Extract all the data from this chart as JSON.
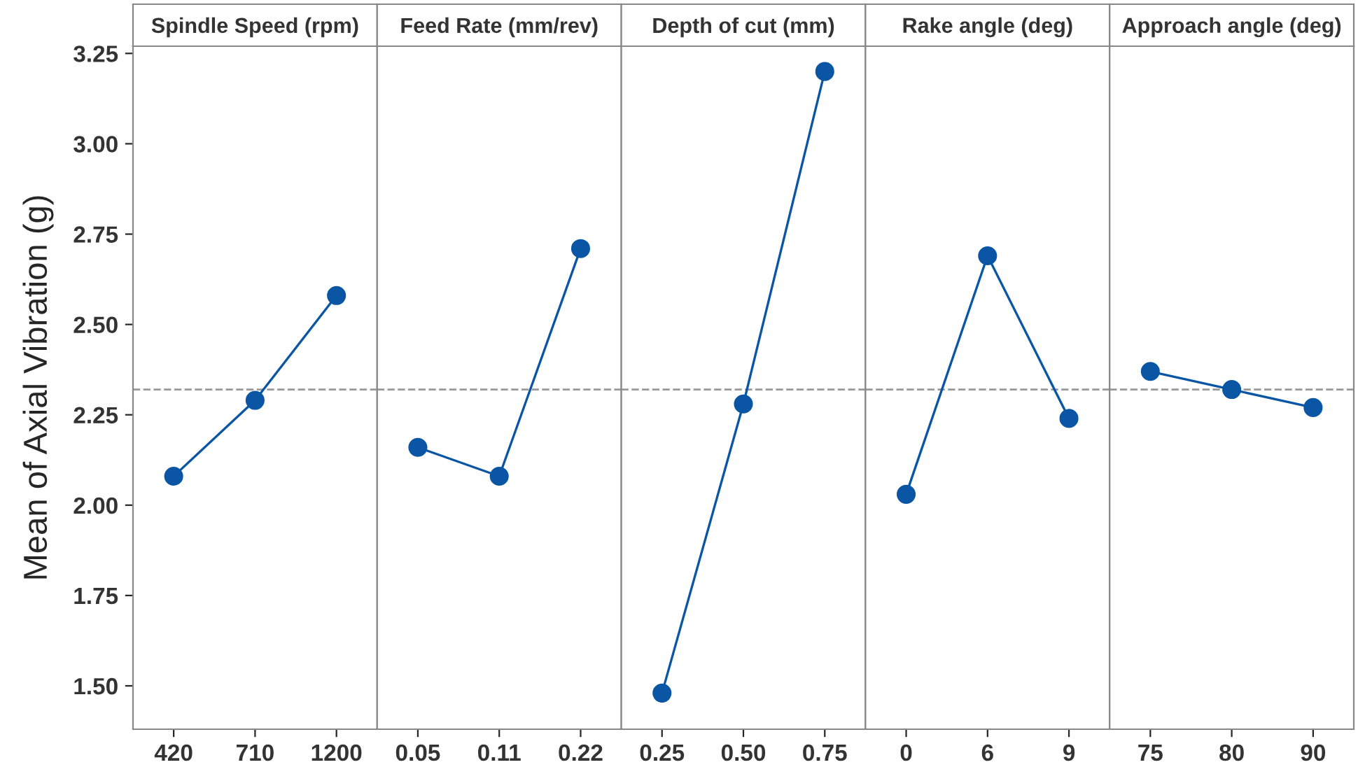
{
  "chart_data": [
    {
      "type": "line",
      "title": "Spindle Speed (rpm)",
      "ylabel": "Mean of Axial Vibration (g)",
      "categories": [
        "420",
        "710",
        "1200"
      ],
      "values": [
        2.08,
        2.29,
        2.58
      ],
      "color": "#0a56a5",
      "marker": "circle",
      "ylim": [
        1.38,
        3.27
      ],
      "yticks": [
        {
          "value": 1.5,
          "label": "1.50"
        },
        {
          "value": 1.75,
          "label": "1.75"
        },
        {
          "value": 2.0,
          "label": "2.00"
        },
        {
          "value": 2.25,
          "label": "2.25"
        },
        {
          "value": 2.5,
          "label": "2.50"
        },
        {
          "value": 2.75,
          "label": "2.75"
        },
        {
          "value": 3.0,
          "label": "3.00"
        },
        {
          "value": 3.25,
          "label": "3.25"
        }
      ],
      "ref_lines": [
        {
          "axis": "y",
          "value": 2.32,
          "color": "#999999",
          "line_style": "dashed"
        }
      ]
    },
    {
      "type": "line",
      "title": "Feed Rate (mm/rev)",
      "categories": [
        "0.05",
        "0.11",
        "0.22"
      ],
      "values": [
        2.16,
        2.08,
        2.71
      ],
      "color": "#0a56a5",
      "marker": "circle",
      "ylim": [
        1.38,
        3.27
      ],
      "tick_labels": "x",
      "ref_lines": [
        {
          "axis": "y",
          "value": 2.32,
          "color": "#999999",
          "line_style": "dashed"
        }
      ]
    },
    {
      "type": "line",
      "title": "Depth of cut (mm)",
      "categories": [
        "0.25",
        "0.50",
        "0.75"
      ],
      "values": [
        1.48,
        2.28,
        3.2
      ],
      "color": "#0a56a5",
      "marker": "circle",
      "ylim": [
        1.38,
        3.27
      ],
      "tick_labels": "x",
      "ref_lines": [
        {
          "axis": "y",
          "value": 2.32,
          "color": "#999999",
          "line_style": "dashed"
        }
      ]
    },
    {
      "type": "line",
      "title": "Rake angle (deg)",
      "categories": [
        "0",
        "6",
        "9"
      ],
      "values": [
        2.03,
        2.69,
        2.24
      ],
      "color": "#0a56a5",
      "marker": "circle",
      "ylim": [
        1.38,
        3.27
      ],
      "tick_labels": "x",
      "ref_lines": [
        {
          "axis": "y",
          "value": 2.32,
          "color": "#999999",
          "line_style": "dashed"
        }
      ]
    },
    {
      "type": "line",
      "title": "Approach angle (deg)",
      "categories": [
        "75",
        "80",
        "90"
      ],
      "values": [
        2.37,
        2.32,
        2.27
      ],
      "color": "#0a56a5",
      "marker": "circle",
      "ylim": [
        1.38,
        3.27
      ],
      "tick_labels": "x",
      "ref_lines": [
        {
          "axis": "y",
          "value": 2.32,
          "color": "#999999",
          "line_style": "dashed"
        }
      ]
    }
  ]
}
